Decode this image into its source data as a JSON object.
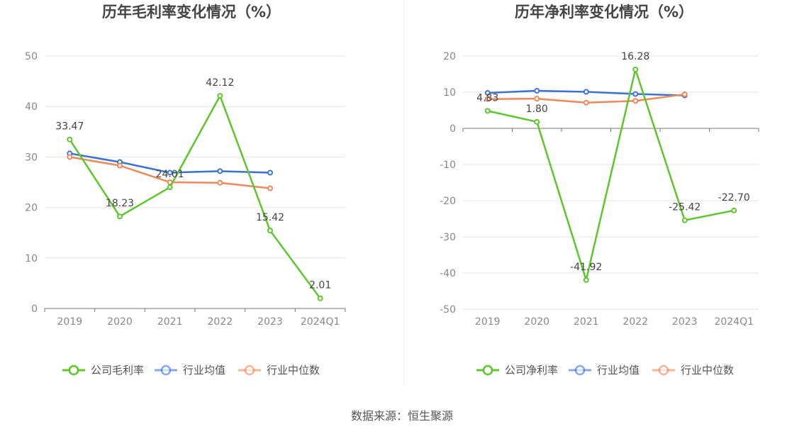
{
  "chart_data": [
    {
      "type": "line",
      "title": "历年毛利率变化情况（%）",
      "categories": [
        "2019",
        "2020",
        "2021",
        "2022",
        "2023",
        "2024Q1"
      ],
      "ylim": [
        0,
        50
      ],
      "yticks": [
        0,
        10,
        20,
        30,
        40,
        50
      ],
      "ytick_labels": [
        "0",
        "10",
        "20",
        "30",
        "40",
        "50"
      ],
      "legend_position": "bottom",
      "series": [
        {
          "name": "公司毛利率",
          "color": "#5cc72b",
          "values": [
            33.47,
            18.23,
            24.01,
            42.12,
            15.42,
            2.01
          ],
          "labels": [
            "33.47",
            "18.23",
            "24.01",
            "42.12",
            "15.42",
            "2.01"
          ]
        },
        {
          "name": "行业均值",
          "color": "#3a72d8",
          "values": [
            30.7,
            29.0,
            26.9,
            27.2,
            26.9,
            null
          ]
        },
        {
          "name": "行业中位数",
          "color": "#f0885a",
          "values": [
            30.0,
            28.3,
            25.0,
            24.9,
            23.8,
            null
          ]
        }
      ]
    },
    {
      "type": "line",
      "title": "历年净利率变化情况（%）",
      "categories": [
        "2019",
        "2020",
        "2021",
        "2022",
        "2023",
        "2024Q1"
      ],
      "ylim": [
        -50,
        20
      ],
      "yticks": [
        -50,
        -40,
        -30,
        -20,
        -10,
        0,
        10,
        20
      ],
      "ytick_labels": [
        "-50",
        "-40",
        "-30",
        "-20",
        "-10",
        "0",
        "10",
        "20"
      ],
      "legend_position": "bottom",
      "series": [
        {
          "name": "公司净利率",
          "color": "#5cc72b",
          "values": [
            4.83,
            1.8,
            -41.92,
            16.28,
            -25.42,
            -22.7
          ],
          "labels": [
            "4.83",
            "1.80",
            "-41.92",
            "16.28",
            "-25.42",
            "-22.70"
          ]
        },
        {
          "name": "行业均值",
          "color": "#3a72d8",
          "values": [
            9.8,
            10.4,
            10.1,
            9.5,
            9.1,
            null
          ]
        },
        {
          "name": "行业中位数",
          "color": "#f0885a",
          "values": [
            8.1,
            8.2,
            7.1,
            7.6,
            9.4,
            null
          ]
        }
      ]
    }
  ],
  "source_label": "数据来源：恒生聚源"
}
